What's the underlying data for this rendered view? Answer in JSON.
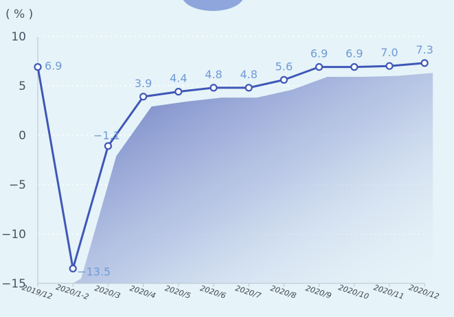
{
  "chart_data": {
    "type": "line",
    "title": "",
    "unit_label": "( % )",
    "xlabel": "",
    "ylabel": "",
    "categories": [
      "2019/12",
      "2020/1-2",
      "2020/3",
      "2020/4",
      "2020/5",
      "2020/6",
      "2020/7",
      "2020/8",
      "2020/9",
      "2020/10",
      "2020/11",
      "2020/12"
    ],
    "series": [
      {
        "name": "",
        "values": [
          6.9,
          -13.5,
          -1.1,
          3.9,
          4.4,
          4.8,
          4.8,
          5.6,
          6.9,
          6.9,
          7.0,
          7.3
        ],
        "labels": [
          "6.9",
          "−13.5",
          "−1.1",
          "3.9",
          "4.4",
          "4.8",
          "4.8",
          "5.6",
          "6.9",
          "6.9",
          "7.0",
          "7.3"
        ]
      }
    ],
    "yticks": [
      10,
      5,
      0,
      -5,
      -10,
      -15
    ],
    "ytick_labels": [
      "10",
      "5",
      "0",
      "−5",
      "−10",
      "−15"
    ],
    "ylim": [
      -15,
      10
    ],
    "grid": "dashed horizontal",
    "legend": "none",
    "colors": {
      "line": "#3f57b6",
      "marker_fill": "#ffffff",
      "data_label": "#6f9ad6",
      "area_top": "#5e6fbd",
      "area_bottom": "#e6f3f8",
      "background": "#e6f3f8",
      "badge": "#8ea6dc"
    }
  }
}
